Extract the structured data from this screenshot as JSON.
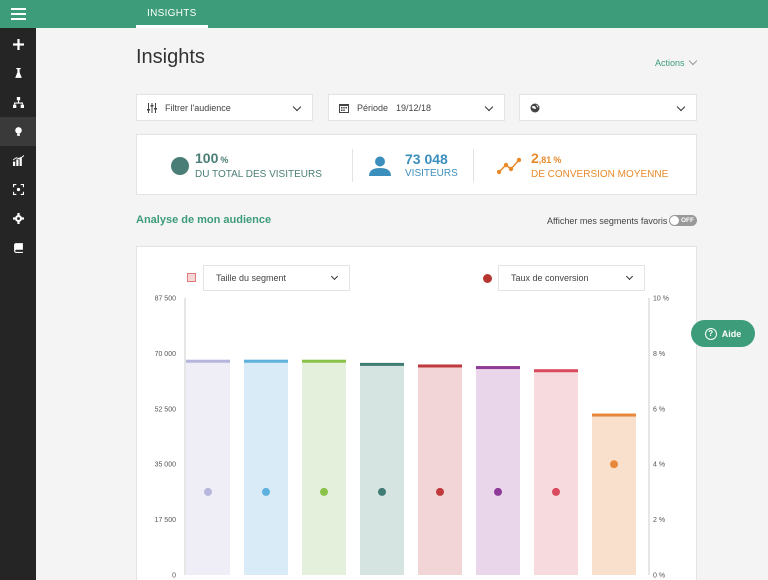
{
  "topbar": {
    "tab": "INSIGHTS"
  },
  "sidebar": {
    "items": [
      {
        "icon": "plus-icon"
      },
      {
        "icon": "flask-icon"
      },
      {
        "icon": "hierarchy-icon"
      },
      {
        "icon": "bulb-icon",
        "active": true
      },
      {
        "icon": "bar-chart-icon"
      },
      {
        "icon": "target-icon"
      },
      {
        "icon": "gear-icon"
      },
      {
        "icon": "book-icon"
      }
    ]
  },
  "page": {
    "title": "Insights",
    "actions": "Actions"
  },
  "filters": {
    "audience": "Filtrer l'audience",
    "period_label": "Période",
    "period_value": "19/12/18",
    "region": ""
  },
  "stats": {
    "total": {
      "value": "100",
      "unit": "%",
      "label": "DU TOTAL DES VISITEURS",
      "color": "#4a7d76"
    },
    "visitors": {
      "value": "73 048",
      "label": "VISITEURS",
      "color": "#3b8fbd"
    },
    "conversion": {
      "value": "2",
      "decimals": ",81",
      "unit": "%",
      "label": "DE CONVERSION MOYENNE",
      "color": "#e88a2a"
    }
  },
  "section": {
    "title": "Analyse de mon audience",
    "fav_label": "Afficher mes segments favoris",
    "toggle_label": "OFF"
  },
  "chart_controls": {
    "left_select": "Taille du segment",
    "right_select": "Taux de conversion",
    "left_legend_color": "#e07b7b",
    "right_legend_color": "#b5352f"
  },
  "chart_data": {
    "type": "bar",
    "y_left": {
      "ticks": [
        "0",
        "17 500",
        "35 000",
        "52 500",
        "70 000",
        "87 500"
      ],
      "ylim": [
        0,
        87500
      ]
    },
    "y_right": {
      "ticks": [
        "0 %",
        "2 %",
        "4 %",
        "6 %",
        "8 %",
        "10 %"
      ],
      "ylim": [
        0,
        10
      ]
    },
    "series": [
      {
        "values": [
          68000,
          68000,
          68000,
          67000,
          66500,
          66000,
          65000,
          51000
        ]
      },
      {
        "values": [
          3,
          3,
          3,
          3,
          3,
          3,
          3,
          4
        ]
      }
    ],
    "colors": [
      "#b8b5dd",
      "#5eb0dd",
      "#8bc34a",
      "#3f7d74",
      "#c0393d",
      "#8e3a98",
      "#d94a5e",
      "#e8873a"
    ],
    "fills": [
      "#efeef7",
      "#d8ebf6",
      "#e5f0dc",
      "#d6e4e1",
      "#f2d6d7",
      "#e9d6ea",
      "#f6dadd",
      "#f8e0cc"
    ]
  },
  "help": {
    "label": "Aide"
  }
}
